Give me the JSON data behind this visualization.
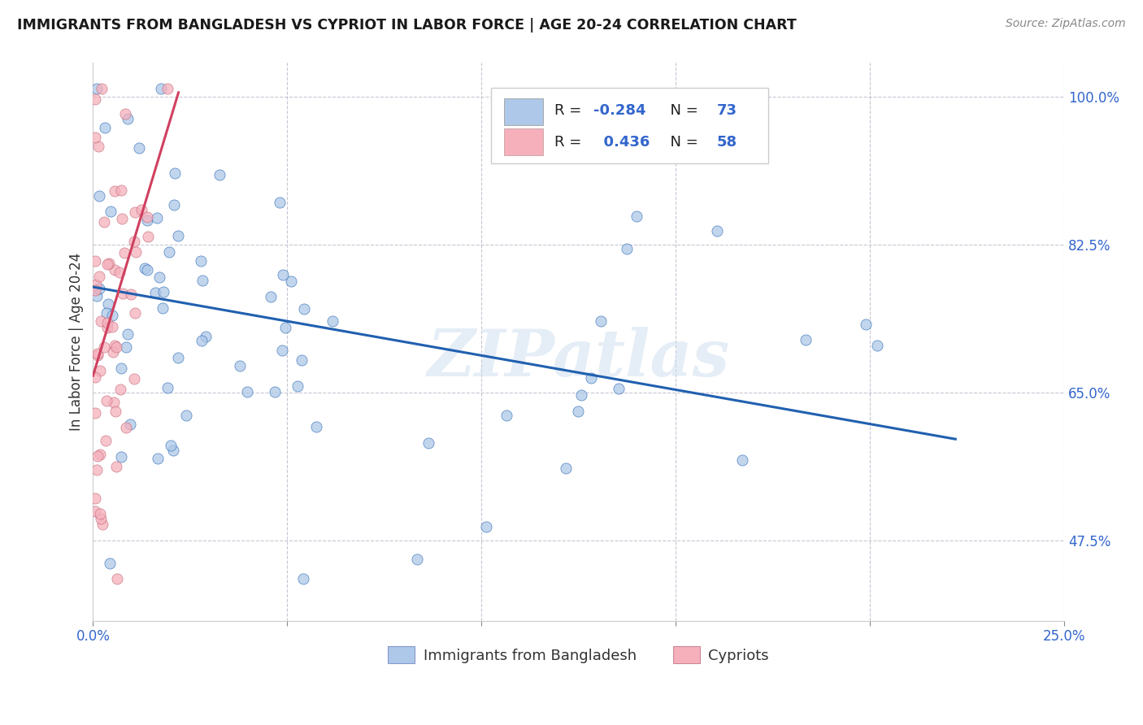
{
  "title": "IMMIGRANTS FROM BANGLADESH VS CYPRIOT IN LABOR FORCE | AGE 20-24 CORRELATION CHART",
  "source": "Source: ZipAtlas.com",
  "ylabel": "In Labor Force | Age 20-24",
  "watermark": "ZIPatlas",
  "r_bangladesh": -0.284,
  "n_bangladesh": 73,
  "r_cypriot": 0.436,
  "n_cypriot": 58,
  "color_bangladesh": "#adc8e8",
  "color_cypriot": "#f5b0bc",
  "line_color_bangladesh": "#2060b0",
  "line_color_cypriot": "#d04060",
  "xlim_min": 0.0,
  "xlim_max": 0.25,
  "ylim_min": 0.38,
  "ylim_max": 1.04,
  "ytick_values": [
    1.0,
    0.825,
    0.65,
    0.475
  ],
  "ytick_labels": [
    "100.0%",
    "82.5%",
    "65.0%",
    "47.5%"
  ],
  "xtick_values": [
    0.0,
    0.05,
    0.1,
    0.15,
    0.2,
    0.25
  ],
  "xtick_labels": [
    "0.0%",
    "",
    "",
    "",
    "",
    "25.0%"
  ],
  "bang_trend_x0": 0.0,
  "bang_trend_y0": 0.775,
  "bang_trend_x1": 0.222,
  "bang_trend_y1": 0.595,
  "cyp_trend_x0": 0.0,
  "cyp_trend_y0": 0.67,
  "cyp_trend_x1": 0.022,
  "cyp_trend_y1": 1.005
}
